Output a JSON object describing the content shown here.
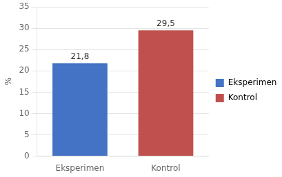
{
  "chart_data": {
    "type": "bar",
    "ylabel": "%",
    "categories": [
      "Eksperimen",
      "Kontrol"
    ],
    "values": [
      21.8,
      29.5
    ],
    "value_labels": [
      "21,8",
      "29,5"
    ],
    "colors": [
      "#4472C4",
      "#C0504D"
    ],
    "data_labels": true,
    "ylim": [
      0,
      35
    ],
    "yticks": [
      0,
      5,
      10,
      15,
      20,
      25,
      30,
      35
    ],
    "grid": true,
    "legend": "right"
  }
}
